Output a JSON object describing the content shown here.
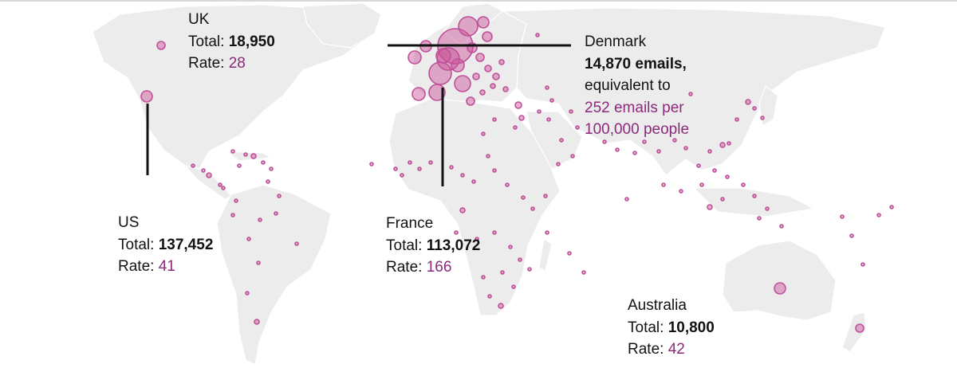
{
  "annotations": {
    "uk": {
      "country": "UK",
      "total_label": "Total:",
      "total": "18,950",
      "rate_label": "Rate:",
      "rate": "28"
    },
    "us": {
      "country": "US",
      "total_label": "Total:",
      "total": "137,452",
      "rate_label": "Rate:",
      "rate": "41"
    },
    "france": {
      "country": "France",
      "total_label": "Total:",
      "total": "113,072",
      "rate_label": "Rate:",
      "rate": "166"
    },
    "australia": {
      "country": "Australia",
      "total_label": "Total:",
      "total": "10,800",
      "rate_label": "Rate:",
      "rate": "42"
    },
    "denmark": {
      "country": "Denmark",
      "emails": "14,870 emails,",
      "equivalent": "equivalent to",
      "per_line1": "252 emails per",
      "per_line2": "100,000 people"
    }
  },
  "colors": {
    "land": "#ececec",
    "bubble_stroke": "#c0509a",
    "bubble_fill": "rgba(201,80,150,0.45)",
    "rate_text": "#8b2a7a",
    "leader_line": "#121212"
  }
}
